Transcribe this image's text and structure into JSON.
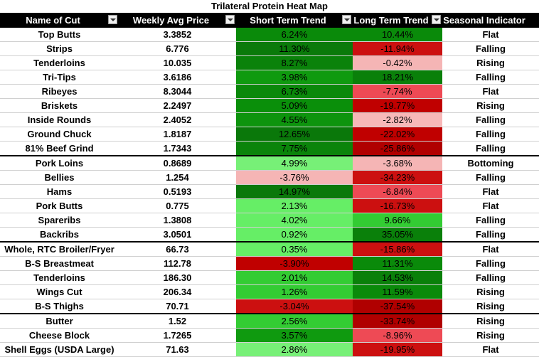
{
  "title": "Trilateral Protein Heat Map",
  "headers": [
    "Name of Cut",
    "Weekly Avg Price",
    "Short Term Trend",
    "Long Term Trend",
    "Seasonal Indicator"
  ],
  "rows": [
    {
      "name": "Top Butts",
      "price": "3.3852",
      "short": "6.24%",
      "long": "10.44%",
      "season": "Flat",
      "sc": "#0a8a0a",
      "lc": "#0a8a0a"
    },
    {
      "name": "Strips",
      "price": "6.776",
      "short": "11.30%",
      "long": "-11.94%",
      "season": "Falling",
      "sc": "#0a7a0a",
      "lc": "#cc1010"
    },
    {
      "name": "Tenderloins",
      "price": "10.035",
      "short": "8.27%",
      "long": "-0.42%",
      "season": "Rising",
      "sc": "#0a820a",
      "lc": "#f5b5b5"
    },
    {
      "name": "Tri-Tips",
      "price": "3.6186",
      "short": "3.98%",
      "long": "18.21%",
      "season": "Falling",
      "sc": "#0f9a0f",
      "lc": "#0a800a"
    },
    {
      "name": "Ribeyes",
      "price": "8.3044",
      "short": "6.73%",
      "long": "-7.74%",
      "season": "Flat",
      "sc": "#0a880a",
      "lc": "#ee4a55"
    },
    {
      "name": "Briskets",
      "price": "2.2497",
      "short": "5.09%",
      "long": "-19.77%",
      "season": "Rising",
      "sc": "#0a8f0a",
      "lc": "#c00000"
    },
    {
      "name": "Inside Rounds",
      "price": "2.4052",
      "short": "4.55%",
      "long": "-2.82%",
      "season": "Falling",
      "sc": "#0d940d",
      "lc": "#f7b8b8"
    },
    {
      "name": "Ground Chuck",
      "price": "1.8187",
      "short": "12.65%",
      "long": "-22.02%",
      "season": "Falling",
      "sc": "#0a780a",
      "lc": "#c00000"
    },
    {
      "name": "81% Beef Grind",
      "price": "1.7343",
      "short": "7.75%",
      "long": "-25.86%",
      "season": "Falling",
      "sc": "#0a840a",
      "lc": "#b00000"
    },
    {
      "name": "Pork Loins",
      "price": "0.8689",
      "short": "4.99%",
      "long": "-3.68%",
      "season": "Bottoming",
      "sc": "#77f077",
      "lc": "#f5b5b5"
    },
    {
      "name": "Bellies",
      "price": "1.254",
      "short": "-3.76%",
      "long": "-34.23%",
      "season": "Falling",
      "sc": "#f5b5b5",
      "lc": "#cc1010"
    },
    {
      "name": "Hams",
      "price": "0.5193",
      "short": "14.97%",
      "long": "-6.84%",
      "season": "Flat",
      "sc": "#0a780a",
      "lc": "#ee4a55"
    },
    {
      "name": "Pork Butts",
      "price": "0.775",
      "short": "2.13%",
      "long": "-16.73%",
      "season": "Flat",
      "sc": "#66ee66",
      "lc": "#cc1010"
    },
    {
      "name": "Spareribs",
      "price": "1.3808",
      "short": "4.02%",
      "long": "9.66%",
      "season": "Falling",
      "sc": "#66ee66",
      "lc": "#33cc33"
    },
    {
      "name": "Backribs",
      "price": "3.0501",
      "short": "0.92%",
      "long": "35.05%",
      "season": "Falling",
      "sc": "#66ee66",
      "lc": "#0a800a"
    },
    {
      "name": "Whole, RTC Broiler/Fryer",
      "price": "66.73",
      "short": "0.35%",
      "long": "-15.86%",
      "season": "Flat",
      "sc": "#66ee66",
      "lc": "#cc1010"
    },
    {
      "name": "B-S Breastmeat",
      "price": "112.78",
      "short": "-3.90%",
      "long": "11.31%",
      "season": "Falling",
      "sc": "#c00000",
      "lc": "#0a8a0a"
    },
    {
      "name": "Tenderloins",
      "price": "186.30",
      "short": "2.01%",
      "long": "14.53%",
      "season": "Falling",
      "sc": "#33cc33",
      "lc": "#0a800a"
    },
    {
      "name": "Wings Cut",
      "price": "206.34",
      "short": "1.26%",
      "long": "11.59%",
      "season": "Rising",
      "sc": "#33cc33",
      "lc": "#0a8a0a"
    },
    {
      "name": "B-S Thighs",
      "price": "70.71",
      "short": "-3.04%",
      "long": "-37.54%",
      "season": "Rising",
      "sc": "#cc1010",
      "lc": "#b00000"
    },
    {
      "name": "Butter",
      "price": "1.52",
      "short": "2.56%",
      "long": "-33.74%",
      "season": "Rising",
      "sc": "#33cc33",
      "lc": "#b00000"
    },
    {
      "name": "Cheese Block",
      "price": "1.7265",
      "short": "3.57%",
      "long": "-8.96%",
      "season": "Rising",
      "sc": "#0f9a0f",
      "lc": "#ee4a55"
    },
    {
      "name": "Shell Eggs (USDA Large)",
      "price": "71.63",
      "short": "2.86%",
      "long": "-19.95%",
      "season": "Flat",
      "sc": "#77f077",
      "lc": "#cc1010"
    }
  ]
}
